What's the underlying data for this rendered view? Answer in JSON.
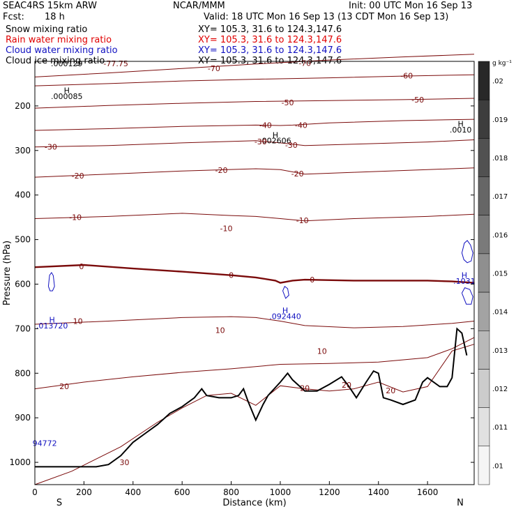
{
  "header": {
    "model": "SEAC4RS 15km ARW",
    "center": "NCAR/MMM",
    "init": "Init: 00 UTC Mon 16 Sep 13",
    "fcst_label": "Fcst:",
    "fcst_value": "18 h",
    "valid": "Valid: 18 UTC Mon 16 Sep 13 (13 CDT Mon 16 Sep 13)"
  },
  "fields": [
    {
      "label": "Snow mixing ratio",
      "xy": "XY= 105.3, 31.6 to 124.3,147.6",
      "color": "#000000"
    },
    {
      "label": "Rain water mixing ratio",
      "xy": "XY= 105.3, 31.6 to 124.3,147.6",
      "color": "#e00000"
    },
    {
      "label": "Cloud water mixing ratio",
      "xy": "XY= 105.3, 31.6 to 124.3,147.6",
      "color": "#1010c0"
    },
    {
      "label": "Cloud ice mixing ratio",
      "xy": "XY= 105.3, 31.6 to 124.3,147.6",
      "color": "#000000"
    }
  ],
  "chart_data": {
    "type": "contour",
    "xlabel": "Distance (km)",
    "ylabel": "Pressure (hPa)",
    "xlim": [
      0,
      1790
    ],
    "ylim": [
      100,
      1050
    ],
    "x_ticks": [
      0,
      200,
      400,
      600,
      800,
      1000,
      1200,
      1400,
      1600
    ],
    "y_ticks": [
      200,
      300,
      400,
      500,
      600,
      700,
      800,
      900,
      1000
    ],
    "x_end_labels": {
      "left": "S",
      "right": "N"
    },
    "colorbar": {
      "unit": "g kg⁻¹",
      "ticks": [
        ".02",
        ".019",
        ".018",
        ".017",
        ".016",
        ".015",
        ".014",
        ".013",
        ".012",
        ".011",
        ".01"
      ],
      "values": [
        0.02,
        0.019,
        0.018,
        0.017,
        0.016,
        0.015,
        0.014,
        0.013,
        0.012,
        0.011,
        0.01
      ]
    },
    "temperature_color": "#7a0a0a",
    "isotherms": [
      {
        "level": -70,
        "pts": [
          [
            0,
            135
          ],
          [
            300,
            126
          ],
          [
            600,
            116
          ],
          [
            900,
            106
          ],
          [
            1200,
            97
          ],
          [
            1500,
            90
          ],
          [
            1790,
            84
          ]
        ]
      },
      {
        "level": -60,
        "pts": [
          [
            0,
            155
          ],
          [
            300,
            150
          ],
          [
            600,
            144
          ],
          [
            900,
            140
          ],
          [
            1200,
            137
          ],
          [
            1500,
            133
          ],
          [
            1790,
            130
          ]
        ]
      },
      {
        "level": -50,
        "pts": [
          [
            0,
            205
          ],
          [
            300,
            199
          ],
          [
            600,
            194
          ],
          [
            900,
            190
          ],
          [
            1200,
            188
          ],
          [
            1500,
            186
          ],
          [
            1790,
            183
          ]
        ]
      },
      {
        "level": -40,
        "pts": [
          [
            0,
            255
          ],
          [
            300,
            251
          ],
          [
            600,
            246
          ],
          [
            900,
            243
          ],
          [
            1000,
            244
          ],
          [
            1050,
            243
          ],
          [
            1200,
            238
          ],
          [
            1500,
            233
          ],
          [
            1790,
            230
          ]
        ]
      },
      {
        "level": -30,
        "pts": [
          [
            0,
            292
          ],
          [
            300,
            289
          ],
          [
            600,
            283
          ],
          [
            900,
            278
          ],
          [
            1000,
            283
          ],
          [
            1100,
            289
          ],
          [
            1300,
            286
          ],
          [
            1600,
            281
          ],
          [
            1790,
            276
          ]
        ]
      },
      {
        "level": -20,
        "pts": [
          [
            0,
            360
          ],
          [
            300,
            353
          ],
          [
            600,
            346
          ],
          [
            900,
            341
          ],
          [
            1000,
            343
          ],
          [
            1100,
            353
          ],
          [
            1300,
            349
          ],
          [
            1600,
            343
          ],
          [
            1790,
            339
          ]
        ]
      },
      {
        "level": -10,
        "pts": [
          [
            0,
            453
          ],
          [
            300,
            448
          ],
          [
            600,
            441
          ],
          [
            800,
            446
          ],
          [
            900,
            448
          ],
          [
            1000,
            453
          ],
          [
            1100,
            458
          ],
          [
            1300,
            453
          ],
          [
            1600,
            448
          ],
          [
            1790,
            443
          ]
        ]
      },
      {
        "level": 0,
        "bold": true,
        "pts": [
          [
            0,
            562
          ],
          [
            200,
            557
          ],
          [
            400,
            565
          ],
          [
            600,
            572
          ],
          [
            800,
            580
          ],
          [
            900,
            585
          ],
          [
            980,
            592
          ],
          [
            1000,
            597
          ],
          [
            1050,
            592
          ],
          [
            1100,
            590
          ],
          [
            1300,
            592
          ],
          [
            1600,
            592
          ],
          [
            1700,
            594
          ],
          [
            1790,
            597
          ]
        ]
      },
      {
        "level": 10,
        "pts": [
          [
            0,
            690
          ],
          [
            300,
            683
          ],
          [
            600,
            675
          ],
          [
            800,
            673
          ],
          [
            900,
            675
          ],
          [
            1000,
            683
          ],
          [
            1100,
            693
          ],
          [
            1300,
            698
          ],
          [
            1500,
            695
          ],
          [
            1700,
            688
          ],
          [
            1790,
            683
          ]
        ]
      },
      {
        "level": 20,
        "pts": [
          [
            0,
            835
          ],
          [
            200,
            820
          ],
          [
            400,
            808
          ],
          [
            600,
            798
          ],
          [
            800,
            790
          ],
          [
            1000,
            780
          ],
          [
            1200,
            778
          ],
          [
            1400,
            775
          ],
          [
            1600,
            765
          ],
          [
            1700,
            745
          ],
          [
            1790,
            720
          ]
        ]
      },
      {
        "level": 30,
        "pts": [
          [
            0,
            1050
          ],
          [
            150,
            1020
          ],
          [
            350,
            965
          ],
          [
            500,
            910
          ],
          [
            600,
            878
          ],
          [
            700,
            850
          ],
          [
            800,
            845
          ],
          [
            900,
            872
          ],
          [
            1000,
            828
          ],
          [
            1100,
            835
          ],
          [
            1200,
            840
          ],
          [
            1300,
            835
          ],
          [
            1400,
            820
          ],
          [
            1500,
            842
          ],
          [
            1600,
            830
          ],
          [
            1700,
            750
          ],
          [
            1790,
            735
          ]
        ]
      }
    ],
    "terrain": [
      [
        0,
        1010
      ],
      [
        250,
        1010
      ],
      [
        300,
        1005
      ],
      [
        350,
        985
      ],
      [
        400,
        955
      ],
      [
        450,
        935
      ],
      [
        500,
        915
      ],
      [
        550,
        890
      ],
      [
        600,
        875
      ],
      [
        650,
        855
      ],
      [
        680,
        835
      ],
      [
        700,
        850
      ],
      [
        750,
        855
      ],
      [
        800,
        855
      ],
      [
        830,
        850
      ],
      [
        850,
        835
      ],
      [
        870,
        865
      ],
      [
        900,
        905
      ],
      [
        930,
        870
      ],
      [
        950,
        850
      ],
      [
        1000,
        820
      ],
      [
        1030,
        800
      ],
      [
        1050,
        815
      ],
      [
        1100,
        840
      ],
      [
        1150,
        840
      ],
      [
        1200,
        825
      ],
      [
        1250,
        808
      ],
      [
        1280,
        830
      ],
      [
        1310,
        855
      ],
      [
        1350,
        820
      ],
      [
        1380,
        795
      ],
      [
        1400,
        800
      ],
      [
        1420,
        855
      ],
      [
        1450,
        860
      ],
      [
        1500,
        870
      ],
      [
        1550,
        860
      ],
      [
        1580,
        820
      ],
      [
        1600,
        810
      ],
      [
        1650,
        830
      ],
      [
        1680,
        830
      ],
      [
        1700,
        810
      ],
      [
        1720,
        700
      ],
      [
        1740,
        710
      ],
      [
        1760,
        760
      ]
    ],
    "cloud_water_contours": [
      [
        [
          55,
          605
        ],
        [
          60,
          580
        ],
        [
          68,
          574
        ],
        [
          75,
          581
        ],
        [
          80,
          605
        ],
        [
          72,
          615
        ],
        [
          62,
          615
        ],
        [
          55,
          605
        ]
      ],
      [
        [
          1010,
          615
        ],
        [
          1018,
          605
        ],
        [
          1030,
          610
        ],
        [
          1035,
          625
        ],
        [
          1022,
          632
        ],
        [
          1010,
          615
        ]
      ],
      [
        [
          1740,
          530
        ],
        [
          1750,
          508
        ],
        [
          1762,
          502
        ],
        [
          1775,
          512
        ],
        [
          1785,
          530
        ],
        [
          1778,
          548
        ],
        [
          1762,
          552
        ],
        [
          1748,
          545
        ],
        [
          1740,
          530
        ]
      ],
      [
        [
          1740,
          620
        ],
        [
          1752,
          608
        ],
        [
          1772,
          612
        ],
        [
          1785,
          628
        ],
        [
          1778,
          645
        ],
        [
          1758,
          645
        ],
        [
          1740,
          620
        ]
      ]
    ],
    "annotations": [
      {
        "text": "H",
        "x": 70,
        "y": 680,
        "color": "#1010c0"
      },
      {
        "text": ".013720",
        "x": 70,
        "y": 693,
        "color": "#1010c0"
      },
      {
        "text": "H",
        "x": 1020,
        "y": 659,
        "color": "#1010c0"
      },
      {
        "text": ".092440",
        "x": 1020,
        "y": 672,
        "color": "#1010c0"
      },
      {
        "text": "H",
        "x": 1750,
        "y": 580,
        "color": "#1010c0"
      },
      {
        "text": ".1031",
        "x": 1750,
        "y": 593,
        "color": "#1010c0"
      },
      {
        "text": "94772",
        "x": 40,
        "y": 957,
        "color": "#1010c0"
      },
      {
        "text": "H",
        "x": 130,
        "y": 165,
        "color": "#000000"
      },
      {
        "text": ".000085",
        "x": 130,
        "y": 178,
        "color": "#000000"
      },
      {
        "text": "H",
        "x": 980,
        "y": 265,
        "color": "#000000"
      },
      {
        "text": ".002606",
        "x": 980,
        "y": 278,
        "color": "#000000"
      },
      {
        "text": "H",
        "x": 1735,
        "y": 240,
        "color": "#000000"
      },
      {
        "text": ".0010",
        "x": 1735,
        "y": 253,
        "color": "#000000"
      },
      {
        "text": ".000129",
        "x": 130,
        "y": 105,
        "color": "#000000"
      },
      {
        "text": "-77.75",
        "x": 330,
        "y": 105,
        "color": "#7a0a0a"
      },
      {
        "text": "-70",
        "x": 730,
        "y": 116,
        "color": "#7a0a0a"
      },
      {
        "text": "-70",
        "x": 1100,
        "y": 104,
        "color": "#7a0a0a"
      },
      {
        "text": "-60",
        "x": 1515,
        "y": 132,
        "color": "#7a0a0a"
      },
      {
        "text": "-50",
        "x": 1030,
        "y": 192,
        "color": "#7a0a0a"
      },
      {
        "text": "-50",
        "x": 1560,
        "y": 186,
        "color": "#7a0a0a"
      },
      {
        "text": "-40",
        "x": 940,
        "y": 243,
        "color": "#7a0a0a"
      },
      {
        "text": "-40",
        "x": 1085,
        "y": 243,
        "color": "#7a0a0a"
      },
      {
        "text": "-30",
        "x": 65,
        "y": 292,
        "color": "#7a0a0a"
      },
      {
        "text": "-30",
        "x": 920,
        "y": 280,
        "color": "#7a0a0a"
      },
      {
        "text": "-30",
        "x": 1045,
        "y": 288,
        "color": "#7a0a0a"
      },
      {
        "text": "-20",
        "x": 175,
        "y": 357,
        "color": "#7a0a0a"
      },
      {
        "text": "-20",
        "x": 760,
        "y": 344,
        "color": "#7a0a0a"
      },
      {
        "text": "-20",
        "x": 1070,
        "y": 352,
        "color": "#7a0a0a"
      },
      {
        "text": "-10",
        "x": 165,
        "y": 450,
        "color": "#7a0a0a"
      },
      {
        "text": "-10",
        "x": 780,
        "y": 475,
        "color": "#7a0a0a"
      },
      {
        "text": "-10",
        "x": 1090,
        "y": 457,
        "color": "#7a0a0a"
      },
      {
        "text": "0",
        "x": 190,
        "y": 560,
        "color": "#7a0a0a"
      },
      {
        "text": "0",
        "x": 800,
        "y": 580,
        "color": "#7a0a0a"
      },
      {
        "text": "0",
        "x": 1130,
        "y": 590,
        "color": "#7a0a0a"
      },
      {
        "text": "10",
        "x": 175,
        "y": 683,
        "color": "#7a0a0a"
      },
      {
        "text": "10",
        "x": 755,
        "y": 703,
        "color": "#7a0a0a"
      },
      {
        "text": "10",
        "x": 1170,
        "y": 750,
        "color": "#7a0a0a"
      },
      {
        "text": "20",
        "x": 120,
        "y": 829,
        "color": "#7a0a0a"
      },
      {
        "text": "20",
        "x": 1100,
        "y": 833,
        "color": "#7a0a0a"
      },
      {
        "text": "20",
        "x": 1270,
        "y": 826,
        "color": "#7a0a0a"
      },
      {
        "text": "20",
        "x": 1450,
        "y": 839,
        "color": "#7a0a0a"
      },
      {
        "text": "30",
        "x": 365,
        "y": 1000,
        "color": "#7a0a0a"
      }
    ]
  }
}
